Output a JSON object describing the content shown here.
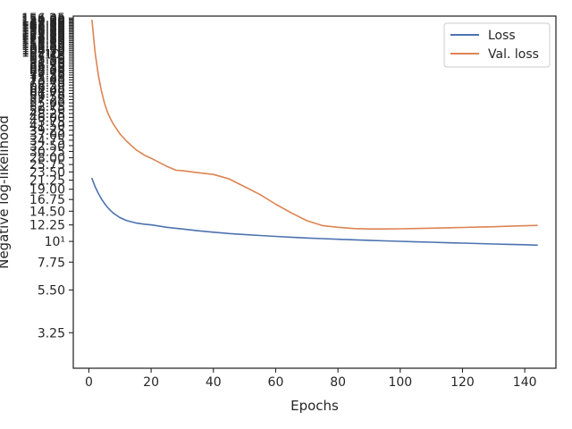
{
  "chart_data": {
    "type": "line",
    "xlabel": "Epochs",
    "ylabel": "Negative log-likelihood",
    "xlim": [
      -5,
      150
    ],
    "ylim": [
      2.1,
      160
    ],
    "yscale": "log",
    "grid": false,
    "legend_position": "top-right",
    "x_ticks": [
      "0",
      "20",
      "40",
      "60",
      "80",
      "100",
      "120",
      "140"
    ],
    "y_ticks": [
      {
        "value": 3.25,
        "label": "3.25"
      },
      {
        "value": 5.5,
        "label": "5.50"
      },
      {
        "value": 7.75,
        "label": "7.75"
      },
      {
        "value": 10,
        "label": "10¹"
      },
      {
        "value": 12.25,
        "label": "12.25"
      },
      {
        "value": 14.5,
        "label": "14.50"
      },
      {
        "value": 16.75,
        "label": "16.75"
      },
      {
        "value": 19.0,
        "label": "19.00"
      },
      {
        "value": 21.25,
        "label": "21.25"
      },
      {
        "value": 23.5,
        "label": "23.50"
      },
      {
        "value": 25.75,
        "label": "25.75"
      },
      {
        "value": 28.0,
        "label": "28.00"
      },
      {
        "value": 30.25,
        "label": "30.25"
      },
      {
        "value": 32.5,
        "label": "32.50"
      },
      {
        "value": 34.75,
        "label": "34.75"
      },
      {
        "value": 37.0,
        "label": "37.00"
      },
      {
        "value": 39.25,
        "label": "39.25"
      },
      {
        "value": 41.5,
        "label": "41.50"
      },
      {
        "value": 43.75,
        "label": "43.75"
      },
      {
        "value": 46.0,
        "label": "46.00"
      },
      {
        "value": 48.25,
        "label": "48.25"
      },
      {
        "value": 50.5,
        "label": "50.50"
      },
      {
        "value": 52.75,
        "label": "52.75"
      },
      {
        "value": 55.0,
        "label": "55.00"
      },
      {
        "value": 57.25,
        "label": "57.25"
      },
      {
        "value": 59.5,
        "label": "59.50"
      },
      {
        "value": 61.75,
        "label": "61.75"
      },
      {
        "value": 64.0,
        "label": "64.00"
      },
      {
        "value": 66.25,
        "label": "66.25"
      },
      {
        "value": 68.5,
        "label": "68.50"
      },
      {
        "value": 70.75,
        "label": "70.75"
      },
      {
        "value": 73.0,
        "label": "73.00"
      },
      {
        "value": 75.25,
        "label": "75.25"
      },
      {
        "value": 77.5,
        "label": "77.50"
      },
      {
        "value": 79.75,
        "label": "79.75"
      },
      {
        "value": 82.0,
        "label": "82.00"
      },
      {
        "value": 84.25,
        "label": "84.25"
      },
      {
        "value": 86.5,
        "label": "86.50"
      },
      {
        "value": 88.75,
        "label": "88.75"
      },
      {
        "value": 91.0,
        "label": "91.00"
      },
      {
        "value": 93.25,
        "label": "93.25"
      },
      {
        "value": 95.5,
        "label": "95.50"
      },
      {
        "value": 97.75,
        "label": "97.75"
      },
      {
        "value": 100,
        "label": "10²"
      },
      {
        "value": 102.25,
        "label": "102.25"
      },
      {
        "value": 104.5,
        "label": "104.50"
      },
      {
        "value": 106.75,
        "label": "106.75"
      },
      {
        "value": 109.0,
        "label": "109.00"
      },
      {
        "value": 111.25,
        "label": "111.25"
      },
      {
        "value": 113.5,
        "label": "113.50"
      },
      {
        "value": 115.75,
        "label": "115.75"
      },
      {
        "value": 118.0,
        "label": "118.00"
      },
      {
        "value": 120.25,
        "label": "120.25"
      },
      {
        "value": 122.5,
        "label": "122.50"
      },
      {
        "value": 124.75,
        "label": "124.75"
      },
      {
        "value": 127.0,
        "label": "127.00"
      },
      {
        "value": 129.25,
        "label": "129.25"
      },
      {
        "value": 131.5,
        "label": "131.50"
      },
      {
        "value": 133.75,
        "label": "133.75"
      },
      {
        "value": 136.0,
        "label": "136.00"
      },
      {
        "value": 138.25,
        "label": "138.25"
      },
      {
        "value": 140.5,
        "label": "140.50"
      },
      {
        "value": 142.75,
        "label": "142.75"
      },
      {
        "value": 145.0,
        "label": "145.00"
      },
      {
        "value": 147.25,
        "label": "147.25"
      },
      {
        "value": 149.5,
        "label": "149.50"
      },
      {
        "value": 151.75,
        "label": "151.75"
      },
      {
        "value": 154.0,
        "label": "154.00"
      },
      {
        "value": 156.25,
        "label": "156.25"
      }
    ],
    "series": [
      {
        "name": "Loss",
        "color": "#4c72b0",
        "x": [
          1,
          2,
          3,
          4,
          5,
          6,
          7,
          8,
          10,
          12,
          15,
          18,
          20,
          25,
          30,
          35,
          40,
          45,
          50,
          55,
          60,
          65,
          70,
          75,
          80,
          85,
          90,
          95,
          100,
          105,
          110,
          115,
          120,
          125,
          130,
          135,
          140,
          144
        ],
        "values": [
          21.7,
          19.6,
          18.1,
          16.9,
          16.0,
          15.2,
          14.6,
          14.1,
          13.4,
          12.95,
          12.55,
          12.35,
          12.25,
          11.9,
          11.65,
          11.4,
          11.2,
          11.02,
          10.88,
          10.75,
          10.64,
          10.53,
          10.43,
          10.35,
          10.27,
          10.2,
          10.13,
          10.07,
          10.01,
          9.95,
          9.9,
          9.84,
          9.79,
          9.74,
          9.69,
          9.64,
          9.6,
          9.55
        ]
      },
      {
        "name": "Val. loss",
        "color": "#dd8452",
        "x": [
          1,
          2,
          3,
          4,
          5,
          6,
          7,
          8,
          10,
          12,
          15,
          18,
          20,
          25,
          28,
          30,
          35,
          40,
          45,
          50,
          55,
          60,
          65,
          70,
          75,
          80,
          85,
          90,
          95,
          100,
          105,
          110,
          115,
          120,
          125,
          130,
          135,
          140,
          144
        ],
        "values": [
          152,
          102,
          78,
          64,
          55,
          49,
          45,
          42,
          37.5,
          34.5,
          31.0,
          28.8,
          27.8,
          25.2,
          24.0,
          23.9,
          23.3,
          22.8,
          21.6,
          19.6,
          17.8,
          15.8,
          14.2,
          12.9,
          12.15,
          11.9,
          11.72,
          11.65,
          11.65,
          11.68,
          11.72,
          11.77,
          11.82,
          11.87,
          11.92,
          11.98,
          12.05,
          12.12,
          12.18
        ]
      }
    ]
  }
}
